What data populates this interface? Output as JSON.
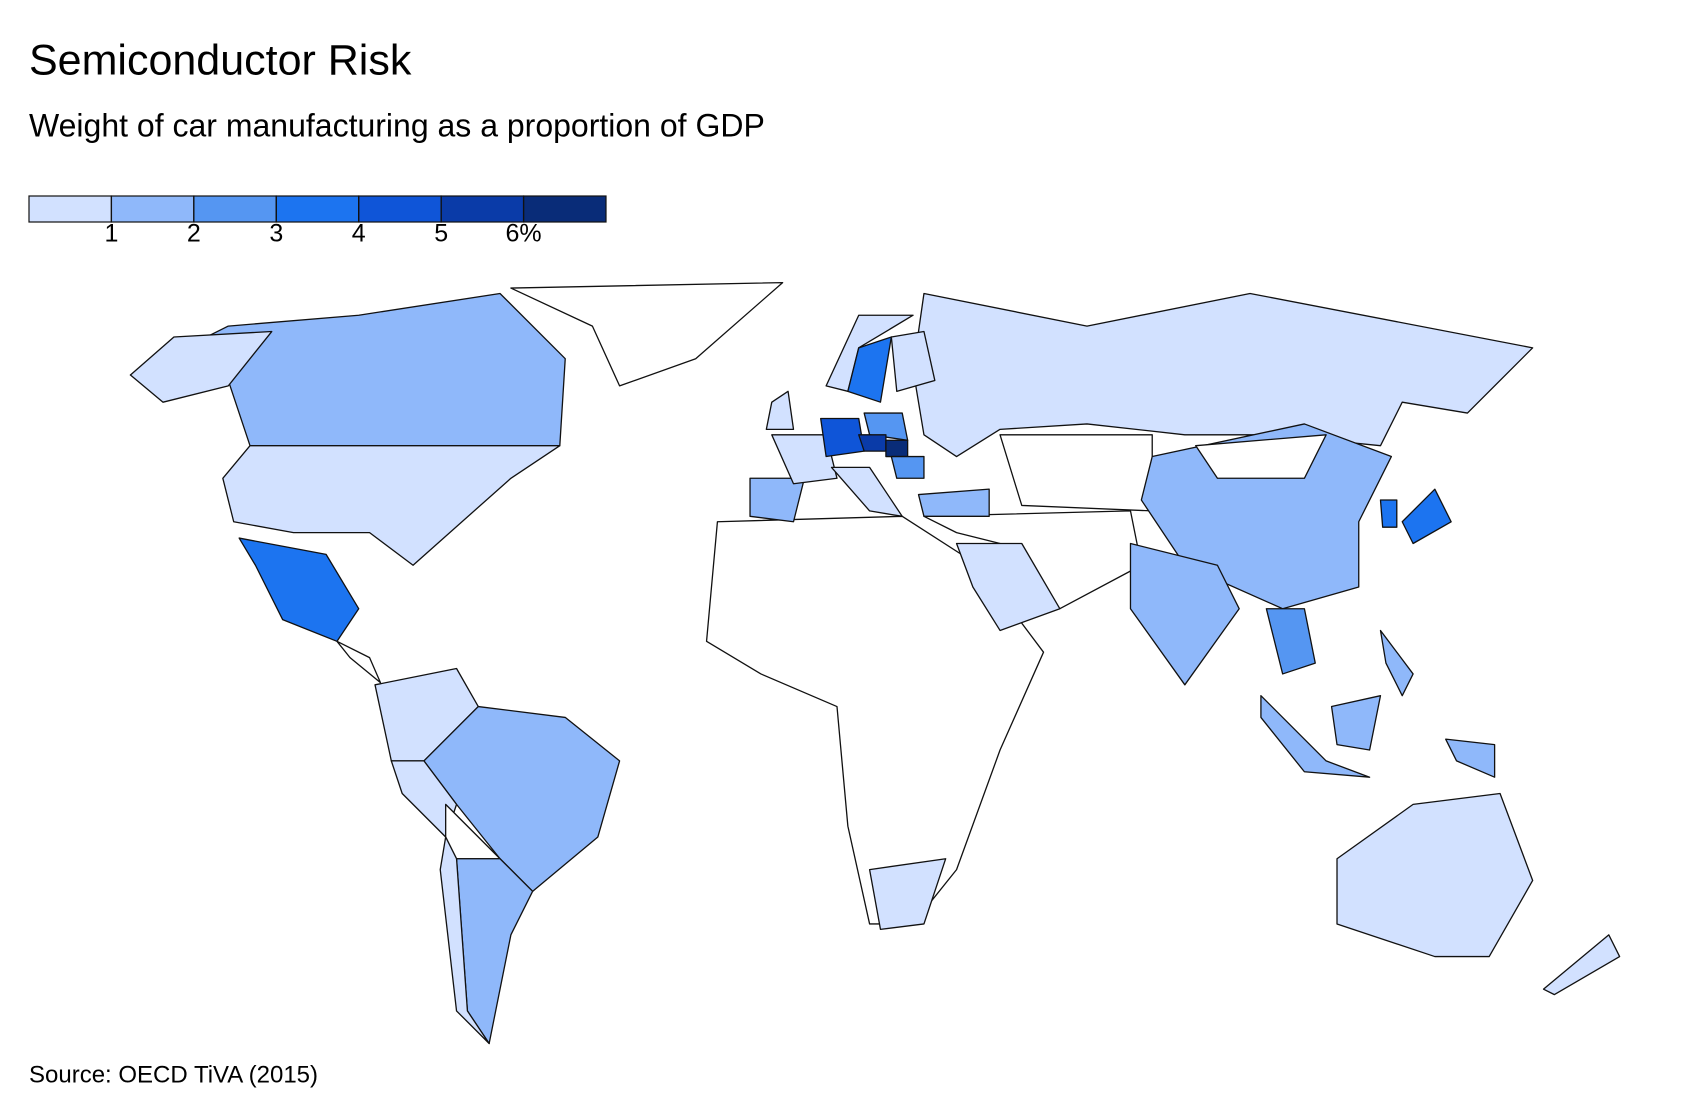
{
  "chart_data": {
    "type": "choropleth",
    "title": "Semiconductor Risk",
    "subtitle": "Weight of car manufacturing as a proportion of GDP",
    "source": "Source: OECD TiVA (2015)",
    "legend": {
      "colors": [
        "#d2e1ff",
        "#8fb8fa",
        "#5596f2",
        "#1c74f0",
        "#0f55d8",
        "#0a3ba8",
        "#092c78"
      ],
      "xlim": [
        0,
        7
      ],
      "xticks": [
        1,
        2,
        3,
        4,
        5,
        {
          "value": 6,
          "label": "6%"
        }
      ]
    }
  }
}
